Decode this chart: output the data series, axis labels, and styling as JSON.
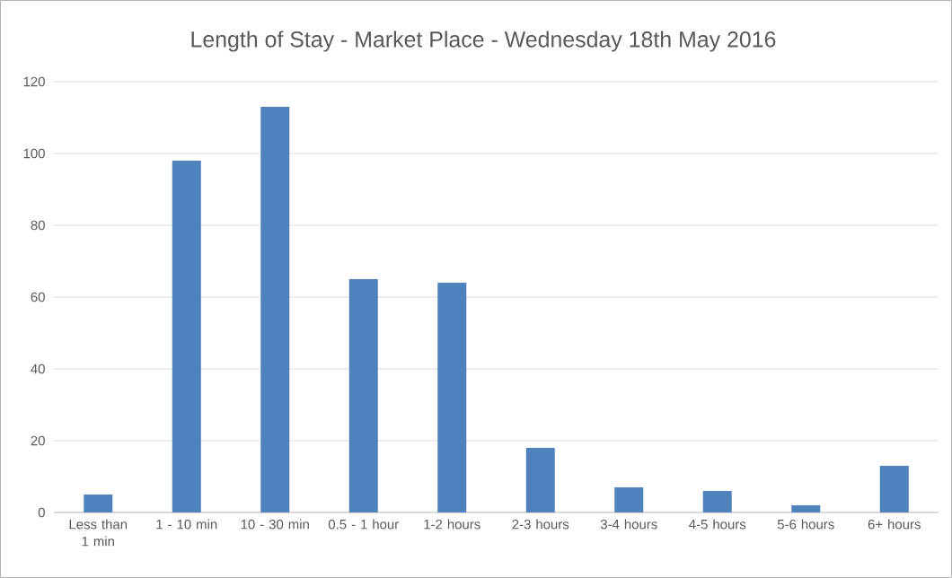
{
  "chart_data": {
    "type": "bar",
    "title": "Length of Stay - Market Place - Wednesday 18th May 2016",
    "categories": [
      "Less than 1 min",
      "1 - 10 min",
      "10 - 30 min",
      "0.5 - 1 hour",
      "1-2 hours",
      "2-3 hours",
      "3-4 hours",
      "4-5 hours",
      "5-6 hours",
      "6+ hours"
    ],
    "values": [
      5,
      98,
      113,
      65,
      64,
      18,
      7,
      6,
      2,
      13
    ],
    "color": "#4f81bd",
    "ylim": [
      0,
      120
    ],
    "yticks": [
      0,
      20,
      40,
      60,
      80,
      100,
      120
    ],
    "grid": "y"
  }
}
